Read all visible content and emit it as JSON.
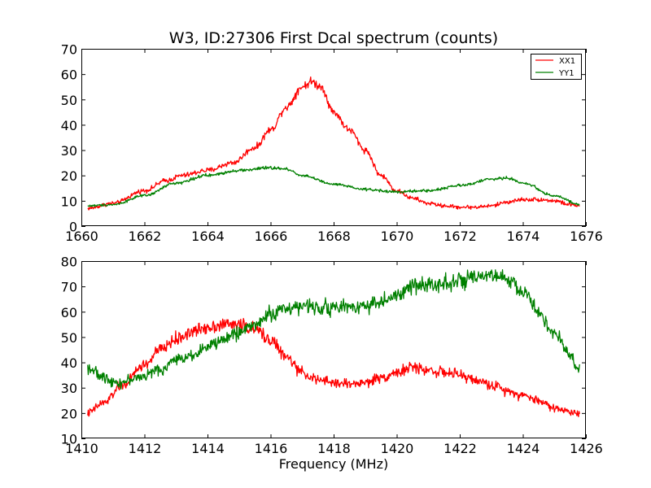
{
  "colors": {
    "xx1": "#ff0000",
    "yy1": "#008000"
  },
  "chart_data": [
    {
      "type": "line",
      "title": "W3, ID:27306 First Dcal spectrum (counts)",
      "xlabel": "",
      "ylabel": "",
      "xlim": [
        1660,
        1676
      ],
      "ylim": [
        0,
        70
      ],
      "xticks": [
        1660,
        1662,
        1664,
        1666,
        1668,
        1670,
        1672,
        1674,
        1676
      ],
      "yticks": [
        0,
        10,
        20,
        30,
        40,
        50,
        60,
        70
      ],
      "legend": {
        "position": "top-right"
      },
      "series": [
        {
          "name": "XX1",
          "color": "#ff0000",
          "noise": 1.0,
          "x": [
            1660.2,
            1661,
            1662,
            1662.7,
            1663.2,
            1664,
            1664.8,
            1665.5,
            1666,
            1666.5,
            1667,
            1667.3,
            1667.6,
            1668,
            1668.5,
            1669,
            1669.5,
            1670,
            1670.5,
            1671,
            1671.5,
            1672,
            1672.5,
            1673,
            1673.5,
            1674,
            1674.5,
            1675,
            1675.5,
            1675.8
          ],
          "y": [
            7,
            9,
            14,
            18,
            20,
            22,
            25,
            31,
            38,
            47,
            55,
            57,
            55,
            45,
            38,
            30,
            20,
            14,
            11,
            9,
            8,
            7.5,
            7.5,
            8,
            9.5,
            10.5,
            10.5,
            10,
            8.5,
            8
          ]
        },
        {
          "name": "YY1",
          "color": "#008000",
          "noise": 0.6,
          "x": [
            1660.2,
            1661,
            1662,
            1663,
            1664,
            1665,
            1666,
            1666.5,
            1667,
            1668,
            1669,
            1670,
            1671,
            1672,
            1673,
            1673.5,
            1674,
            1675,
            1675.8
          ],
          "y": [
            8,
            8.5,
            12,
            17,
            20,
            22,
            23,
            22.5,
            20,
            16.5,
            14.5,
            13.5,
            14,
            16,
            18.5,
            19,
            17,
            12,
            8.5
          ]
        }
      ]
    },
    {
      "type": "line",
      "title": "",
      "xlabel": "Frequency (MHz)",
      "ylabel": "",
      "xlim": [
        1410,
        1426
      ],
      "ylim": [
        10,
        80
      ],
      "xticks": [
        1410,
        1412,
        1414,
        1416,
        1418,
        1420,
        1422,
        1424,
        1426
      ],
      "yticks": [
        10,
        20,
        30,
        40,
        50,
        60,
        70,
        80
      ],
      "series": [
        {
          "name": "",
          "color": "#ff0000",
          "noise": 1.6,
          "x": [
            1410.2,
            1410.7,
            1411.3,
            1412,
            1412.5,
            1413,
            1413.5,
            1414,
            1414.5,
            1415,
            1415.5,
            1416,
            1416.5,
            1417,
            1417.5,
            1418,
            1418.5,
            1419,
            1419.5,
            1420,
            1420.5,
            1421,
            1421.5,
            1422,
            1422.5,
            1423,
            1423.5,
            1424,
            1424.5,
            1425,
            1425.5,
            1425.8
          ],
          "y": [
            20,
            24,
            31,
            39,
            45,
            49,
            52,
            54,
            55,
            55,
            53,
            49,
            42,
            36,
            33,
            32,
            31.5,
            32,
            34,
            36,
            38,
            37,
            36,
            35,
            33,
            31,
            29,
            27,
            25,
            22,
            20.5,
            20
          ]
        },
        {
          "name": "",
          "color": "#008000",
          "noise": 1.6,
          "x": [
            1410.2,
            1410.7,
            1411.2,
            1411.8,
            1412.5,
            1413,
            1413.5,
            1414,
            1414.5,
            1415,
            1415.5,
            1416,
            1416.5,
            1417,
            1417.5,
            1418,
            1418.5,
            1419,
            1419.5,
            1420,
            1420.5,
            1421,
            1421.5,
            1422,
            1422.5,
            1423,
            1423.5,
            1424,
            1424.5,
            1425,
            1425.5,
            1425.8
          ],
          "y": [
            38,
            34,
            32,
            34,
            37,
            41,
            43,
            46,
            49,
            52,
            55,
            59,
            61.5,
            62,
            62,
            61.5,
            62,
            62.5,
            64,
            66,
            70,
            71,
            71.5,
            72,
            73,
            74,
            73,
            68,
            60,
            51,
            43,
            37
          ]
        }
      ]
    }
  ]
}
